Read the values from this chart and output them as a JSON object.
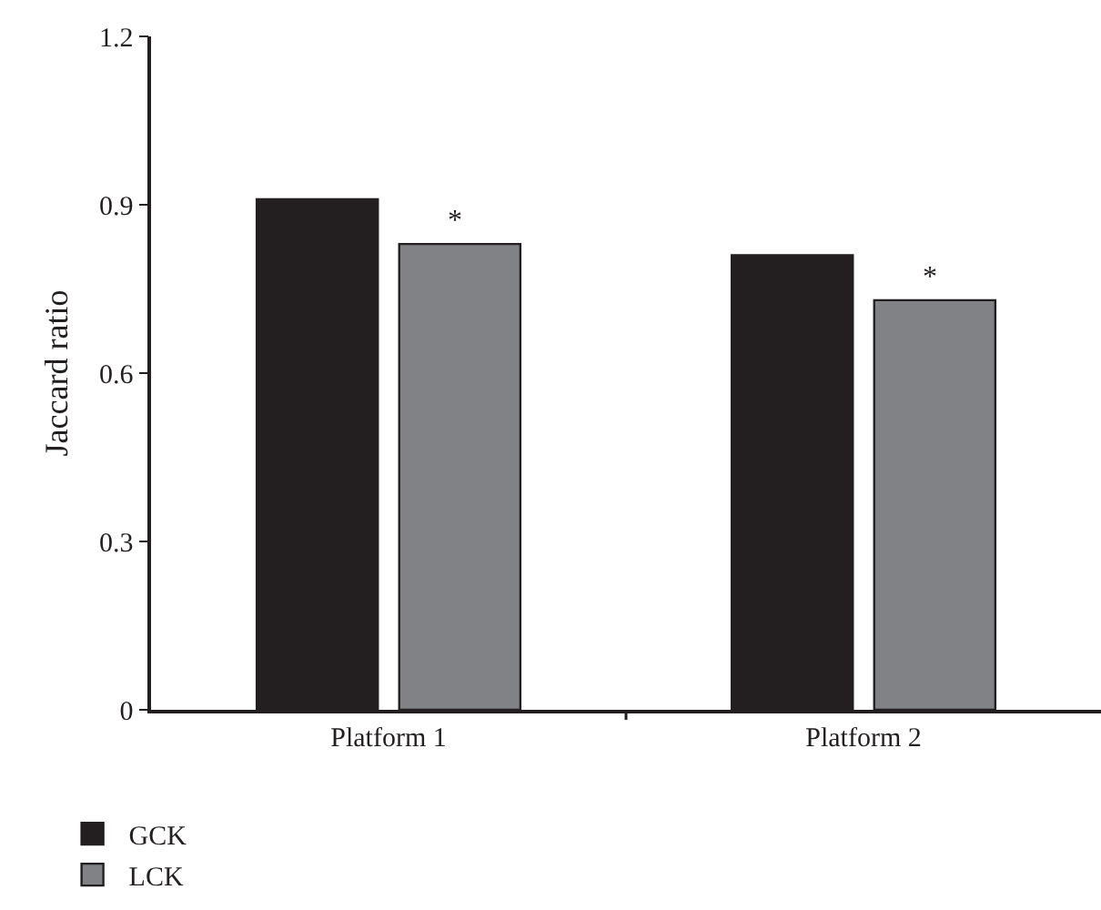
{
  "chart_data": {
    "type": "bar",
    "ylabel": "Jaccard ratio",
    "categories": [
      "Platform 1",
      "Platform 2"
    ],
    "series": [
      {
        "name": "GCK",
        "color": "#231f20",
        "values": [
          0.91,
          0.81
        ]
      },
      {
        "name": "LCK",
        "color": "#808285",
        "values": [
          0.83,
          0.73
        ]
      }
    ],
    "ylim": [
      0,
      1.2
    ],
    "yticks": [
      0,
      0.3,
      0.6,
      0.9,
      1.2
    ],
    "grid": false,
    "legend": "bottom left",
    "annotations": [
      "*",
      "*"
    ]
  }
}
